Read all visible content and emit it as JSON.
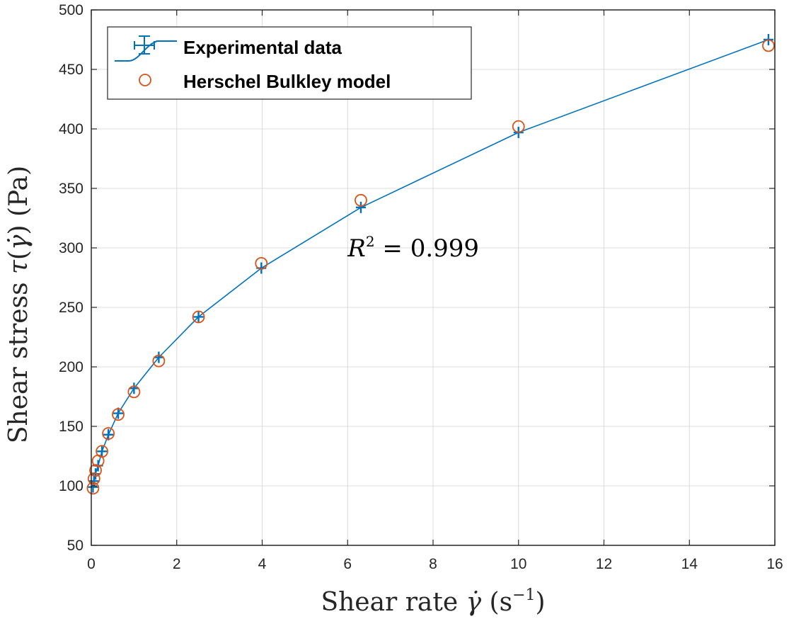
{
  "colors": {
    "experimental": "#0072BD",
    "model": "#D95319",
    "grid": "#DCDCDC",
    "axis": "#262626",
    "background": "#FFFFFF"
  },
  "chart_data": {
    "type": "scatter",
    "xlim": [
      0,
      16
    ],
    "ylim": [
      50,
      500
    ],
    "x_ticks": [
      0,
      2,
      4,
      6,
      8,
      10,
      12,
      14,
      16
    ],
    "y_ticks": [
      50,
      100,
      150,
      200,
      250,
      300,
      350,
      400,
      450,
      500
    ],
    "grid": true,
    "legend_position": "top-left",
    "xlabel": {
      "prefix": "Shear rate ",
      "var": "γ̇",
      "mid": " (s",
      "sup": "−1",
      "suffix": ")"
    },
    "ylabel": {
      "prefix": "Shear stress ",
      "var": "τ",
      "mid": "(",
      "var2": "γ̇",
      "suffix": ") (Pa)"
    },
    "annotation": {
      "var": "R",
      "sup": "2",
      "rest": " = 0.999",
      "x": 6.0,
      "y": 300
    },
    "series": [
      {
        "name": "Experimental data",
        "marker": "plus-with-errorbar-line",
        "x": [
          0.04,
          0.063,
          0.1,
          0.16,
          0.25,
          0.4,
          0.63,
          1.0,
          1.58,
          2.51,
          3.98,
          6.31,
          10.0,
          15.85
        ],
        "y": [
          99,
          104,
          110,
          117,
          129,
          143,
          161,
          182,
          208,
          242,
          283,
          334,
          397,
          475
        ]
      },
      {
        "name": "Herschel Bulkley model",
        "marker": "circle",
        "x": [
          0.04,
          0.063,
          0.1,
          0.16,
          0.25,
          0.4,
          0.63,
          1.0,
          1.58,
          2.51,
          3.98,
          6.31,
          10.0,
          15.85
        ],
        "y": [
          98,
          106,
          113,
          121,
          129,
          144,
          160,
          179,
          205,
          242,
          287,
          340,
          402,
          470
        ]
      }
    ]
  }
}
